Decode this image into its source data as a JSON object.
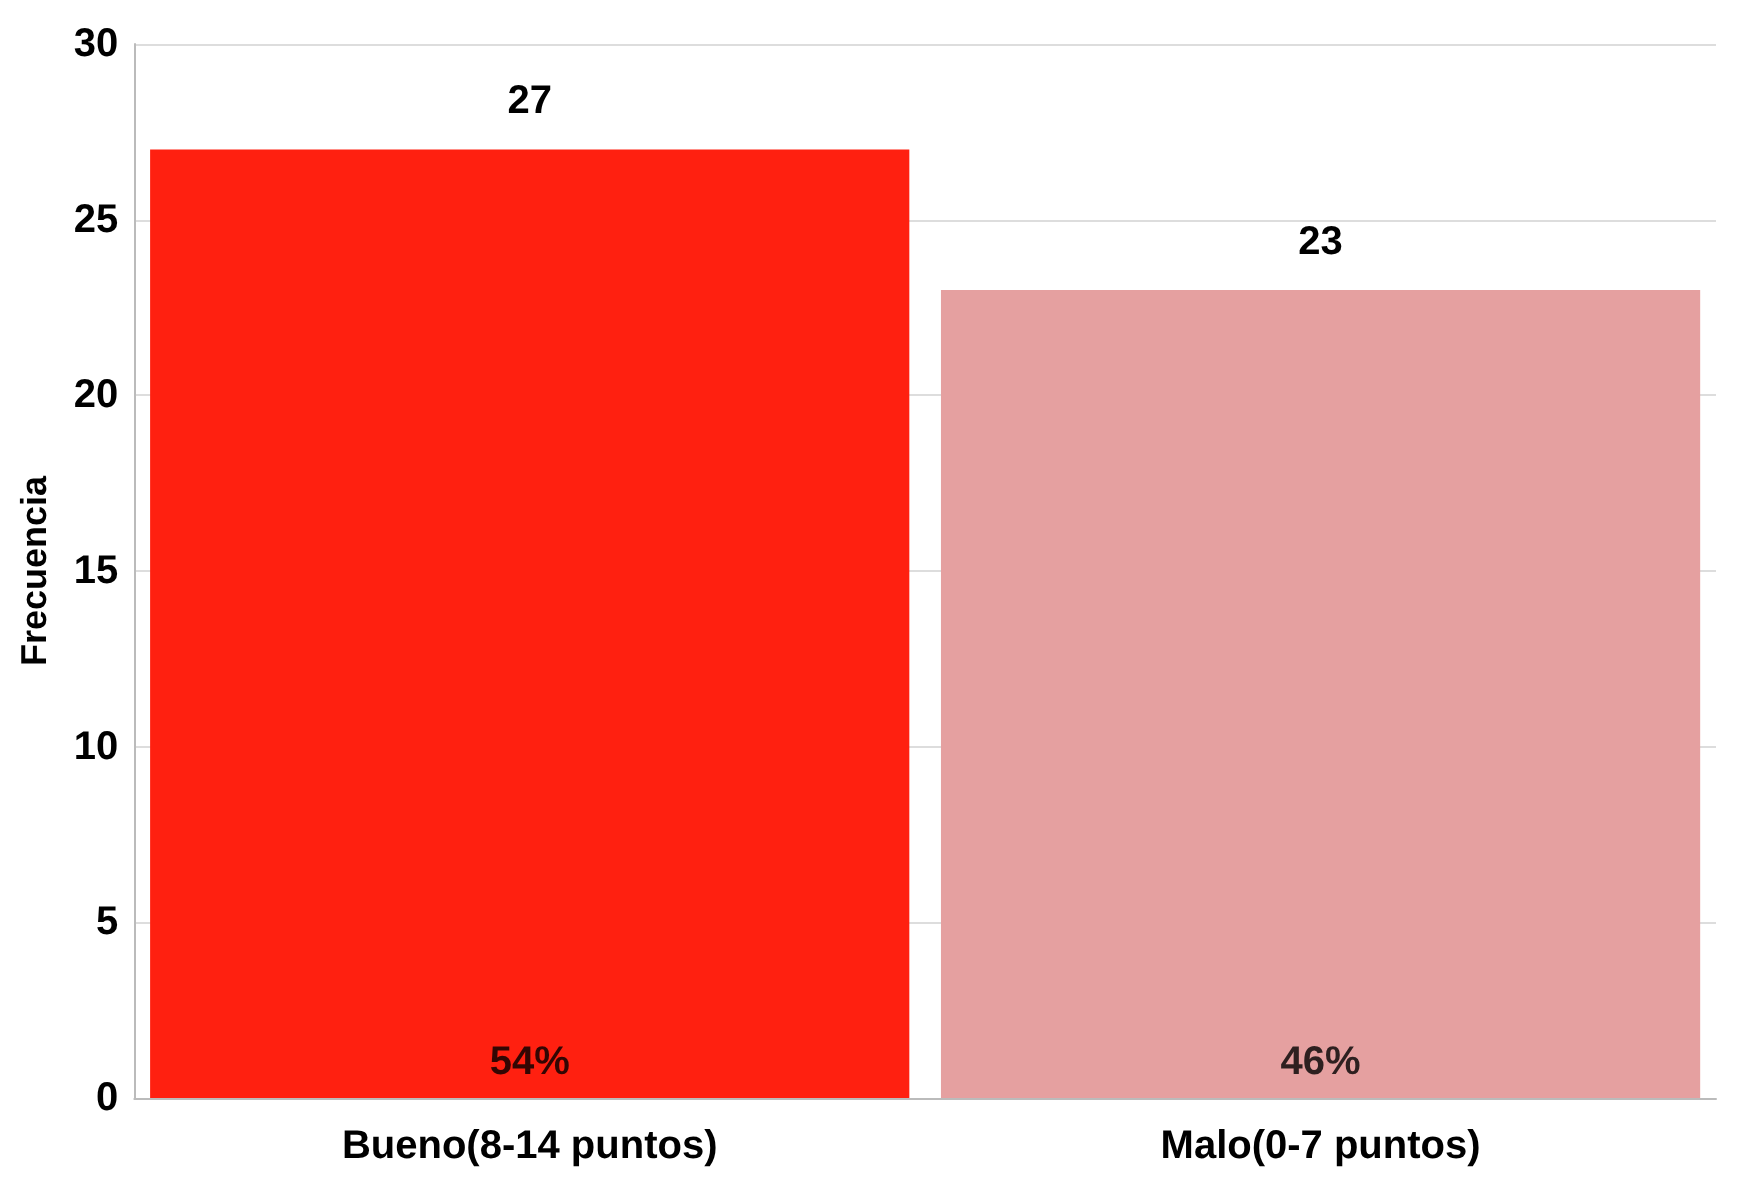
{
  "chart_data": {
    "type": "bar",
    "ylabel": "Frecuencia",
    "categories": [
      "Bueno(8-14 puntos)",
      "Malo(0-7 puntos)"
    ],
    "values": [
      27,
      23
    ],
    "colors": [
      "#ff2010",
      "#e5a0a0"
    ],
    "ylim": [
      0,
      30
    ],
    "yticks": [
      0,
      5,
      10,
      15,
      20,
      25,
      30
    ],
    "grid": "y",
    "data_labels": true,
    "annotations": [
      "54%",
      "46%"
    ]
  }
}
